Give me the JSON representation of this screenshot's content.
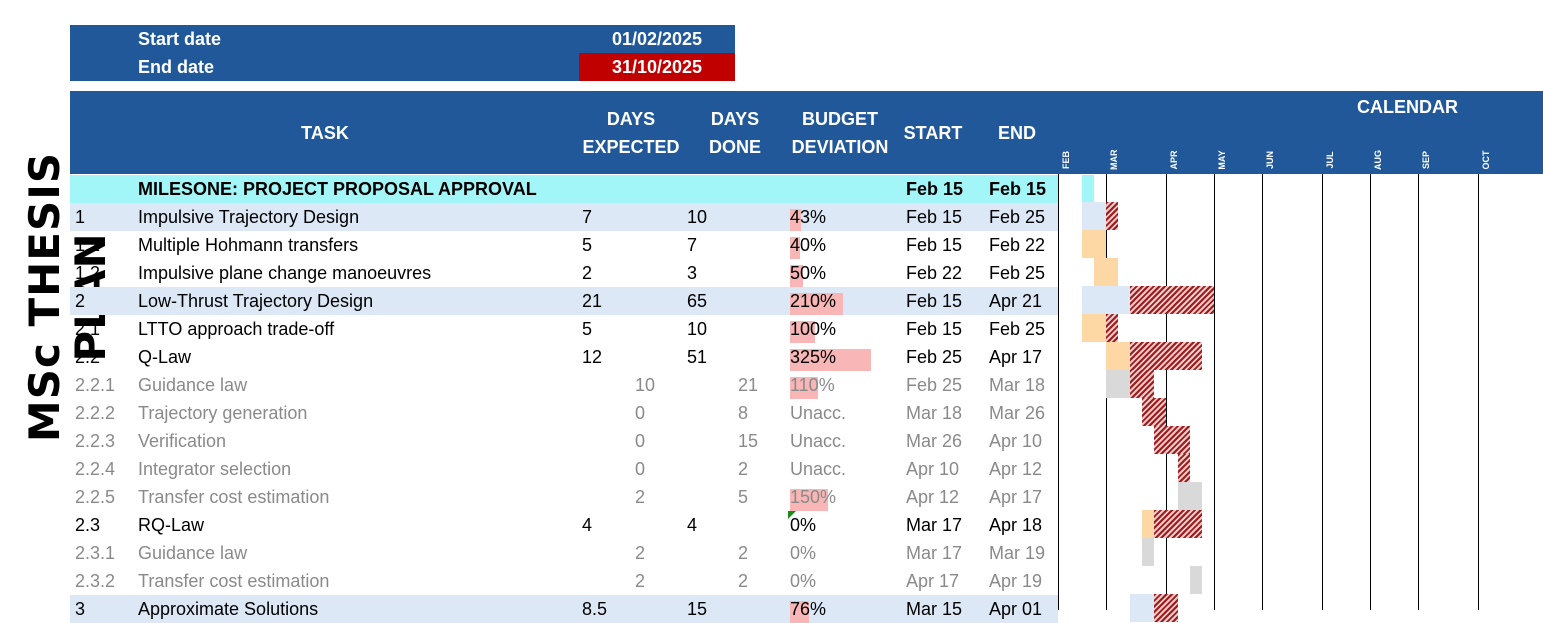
{
  "title": "MSc THESIS PLAN",
  "start_date": {
    "label": "Start date",
    "value": "01/02/2025"
  },
  "end_date": {
    "label": "End date",
    "value": "31/10/2025"
  },
  "headers": {
    "task": "TASK",
    "days_expected_1": "DAYS",
    "days_expected_2": "EXPECTED",
    "days_done_1": "DAYS",
    "days_done_2": "DONE",
    "budget_1": "BUDGET",
    "budget_2": "DEVIATION",
    "start": "START",
    "end": "END",
    "calendar": "CALENDAR"
  },
  "months": [
    "FEB",
    "MAR",
    "APR",
    "MAY",
    "JUN",
    "JUL",
    "AUG",
    "SEP",
    "OCT"
  ],
  "rows": [
    {
      "num": "",
      "task": "MILESONE: PROJECT PROPOSAL APPROVAL",
      "exp": "",
      "done": "",
      "dev": "",
      "dev_pct": 0,
      "start": "Feb 15",
      "end": "Feb 15",
      "style": "milestone"
    },
    {
      "num": "1",
      "task": "Impulsive Trajectory Design",
      "exp": "7",
      "done": "10",
      "dev": "43%",
      "dev_pct": 43,
      "start": "Feb 15",
      "end": "Feb 25",
      "style": "lvl1"
    },
    {
      "num": "1.1",
      "task": "Multiple Hohmann transfers",
      "exp": "5",
      "done": "7",
      "dev": "40%",
      "dev_pct": 40,
      "start": "Feb 15",
      "end": "Feb 22",
      "style": "lvl2"
    },
    {
      "num": "1.2",
      "task": "Impulsive plane change manoeuvres",
      "exp": "2",
      "done": "3",
      "dev": "50%",
      "dev_pct": 50,
      "start": "Feb 22",
      "end": "Feb 25",
      "style": "lvl2"
    },
    {
      "num": "2",
      "task": "Low-Thrust Trajectory Design",
      "exp": "21",
      "done": "65",
      "dev": "210%",
      "dev_pct": 210,
      "start": "Feb 15",
      "end": "Apr 21",
      "style": "lvl1"
    },
    {
      "num": "2.1",
      "task": "LTTO approach trade-off",
      "exp": "5",
      "done": "10",
      "dev": "100%",
      "dev_pct": 100,
      "start": "Feb 15",
      "end": "Feb 25",
      "style": "lvl2"
    },
    {
      "num": "2.2",
      "task": "Q-Law",
      "exp": "12",
      "done": "51",
      "dev": "325%",
      "dev_pct": 325,
      "start": "Feb 25",
      "end": "Apr 17",
      "style": "lvl2"
    },
    {
      "num": "2.2.1",
      "task": "Guidance law",
      "exp": "10",
      "done": "21",
      "dev": "110%",
      "dev_pct": 110,
      "start": "Feb 25",
      "end": "Mar 18",
      "style": "sub"
    },
    {
      "num": "2.2.2",
      "task": "Trajectory generation",
      "exp": "0",
      "done": "8",
      "dev": "Unacc.",
      "dev_pct": 0,
      "start": "Mar 18",
      "end": "Mar 26",
      "style": "sub"
    },
    {
      "num": "2.2.3",
      "task": "Verification",
      "exp": "0",
      "done": "15",
      "dev": "Unacc.",
      "dev_pct": 0,
      "start": "Mar 26",
      "end": "Apr 10",
      "style": "sub"
    },
    {
      "num": "2.2.4",
      "task": "Integrator selection",
      "exp": "0",
      "done": "2",
      "dev": "Unacc.",
      "dev_pct": 0,
      "start": "Apr 10",
      "end": "Apr 12",
      "style": "sub"
    },
    {
      "num": "2.2.5",
      "task": "Transfer cost estimation",
      "exp": "2",
      "done": "5",
      "dev": "150%",
      "dev_pct": 150,
      "start": "Apr 12",
      "end": "Apr 17",
      "style": "sub"
    },
    {
      "num": "2.3",
      "task": "RQ-Law",
      "exp": "4",
      "done": "4",
      "dev": "0%",
      "dev_pct": 0,
      "start": "Mar 17",
      "end": "Apr 18",
      "style": "lvl2"
    },
    {
      "num": "2.3.1",
      "task": "Guidance law",
      "exp": "2",
      "done": "2",
      "dev": "0%",
      "dev_pct": 0,
      "start": "Mar 17",
      "end": "Mar 19",
      "style": "sub"
    },
    {
      "num": "2.3.2",
      "task": "Transfer cost estimation",
      "exp": "2",
      "done": "2",
      "dev": "0%",
      "dev_pct": 0,
      "start": "Apr 17",
      "end": "Apr 19",
      "style": "sub"
    },
    {
      "num": "3",
      "task": "Approximate Solutions",
      "exp": "8.5",
      "done": "15",
      "dev": "76%",
      "dev_pct": 76,
      "start": "Mar 15",
      "end": "Apr 01",
      "style": "lvl1"
    }
  ],
  "colors": {
    "header": "#20589a",
    "milestone": "#a2f6f8",
    "level1": "#dce8f6",
    "deviation_bar": "#f8b6b6",
    "planned": "#fdd8a4",
    "overrun": "#9b1c1c",
    "end_date_bg": "#c00000"
  }
}
